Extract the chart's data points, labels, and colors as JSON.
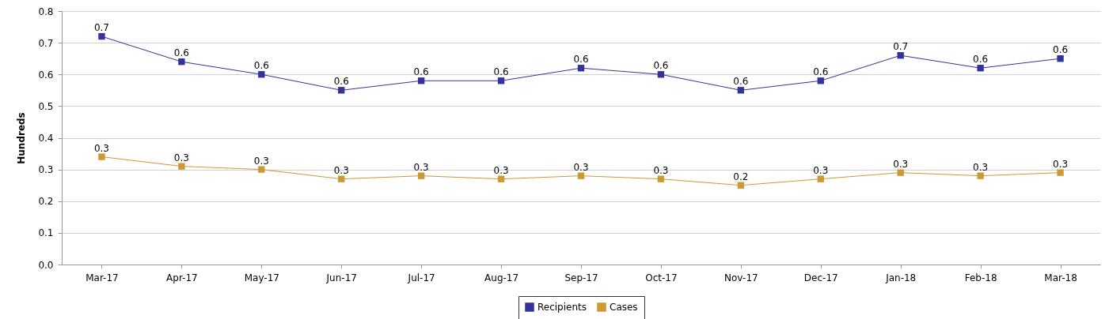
{
  "chart_data": {
    "type": "line",
    "ylabel": "Hundreds",
    "categories": [
      "Mar-17",
      "Apr-17",
      "May-17",
      "Jun-17",
      "Jul-17",
      "Aug-17",
      "Sep-17",
      "Oct-17",
      "Nov-17",
      "Dec-17",
      "Jan-18",
      "Feb-18",
      "Mar-18"
    ],
    "series": [
      {
        "name": "Recipients",
        "color": "#333399",
        "values": [
          0.72,
          0.64,
          0.6,
          0.55,
          0.58,
          0.58,
          0.62,
          0.6,
          0.55,
          0.58,
          0.66,
          0.62,
          0.65
        ],
        "value_labels": [
          "0.7",
          "0.6",
          "0.6",
          "0.6",
          "0.6",
          "0.6",
          "0.6",
          "0.6",
          "0.6",
          "0.6",
          "0.7",
          "0.6",
          "0.6"
        ]
      },
      {
        "name": "Cases",
        "color": "#cc9933",
        "values": [
          0.34,
          0.31,
          0.3,
          0.27,
          0.28,
          0.27,
          0.28,
          0.27,
          0.25,
          0.27,
          0.29,
          0.28,
          0.29
        ],
        "value_labels": [
          "0.3",
          "0.3",
          "0.3",
          "0.3",
          "0.3",
          "0.3",
          "0.3",
          "0.3",
          "0.2",
          "0.3",
          "0.3",
          "0.3",
          "0.3"
        ]
      }
    ],
    "ylim": [
      0,
      0.8
    ],
    "yticks": [
      {
        "value": 0,
        "label": "0.0"
      },
      0.1,
      0.2,
      0.3,
      0.4,
      0.5,
      0.6,
      0.7,
      0.8
    ],
    "grid": "y",
    "legend": "bottom",
    "marker": "square",
    "line_style": "solid"
  }
}
